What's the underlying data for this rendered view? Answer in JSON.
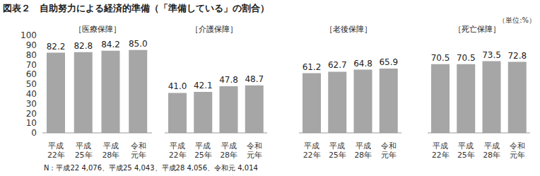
{
  "title": "図表２　自助努力による経済的準備（「準備している」の割合）",
  "unit": "（単位:%）",
  "note": "N：平成22 4,076、平成25 4,043、平成28 4,056、令和元 4,014",
  "chart_data": [
    {
      "type": "bar",
      "title": "［医療保障］",
      "categories": [
        "平成\n22年",
        "平成\n25年",
        "平成\n28年",
        "令和\n元年"
      ],
      "values": [
        82.2,
        82.8,
        84.2,
        85.0
      ],
      "value_labels": [
        "82.2",
        "82.8",
        "84.2",
        "85.0"
      ],
      "color": "#a6a6a6",
      "ylim": [
        0,
        100
      ],
      "yticks": [
        0,
        10,
        20,
        30,
        40,
        50,
        60,
        70,
        80,
        90,
        100
      ],
      "data_labels": true
    },
    {
      "type": "bar",
      "title": "［介護保障］",
      "categories": [
        "平成\n22年",
        "平成\n25年",
        "平成\n28年",
        "令和\n元年"
      ],
      "values": [
        41.0,
        42.1,
        47.8,
        48.7
      ],
      "value_labels": [
        "41.0",
        "42.1",
        "47.8",
        "48.7"
      ],
      "color": "#a6a6a6",
      "ylim": [
        0,
        100
      ],
      "yticks": [
        0,
        10,
        20,
        30,
        40,
        50,
        60,
        70,
        80,
        90,
        100
      ],
      "data_labels": true,
      "tick_labels": "x"
    },
    {
      "type": "bar",
      "title": "［老後保障］",
      "categories": [
        "平成\n22年",
        "平成\n25年",
        "平成\n28年",
        "令和\n元年"
      ],
      "values": [
        61.2,
        62.7,
        64.8,
        65.9
      ],
      "value_labels": [
        "61.2",
        "62.7",
        "64.8",
        "65.9"
      ],
      "color": "#a6a6a6",
      "ylim": [
        0,
        100
      ],
      "yticks": [
        0,
        10,
        20,
        30,
        40,
        50,
        60,
        70,
        80,
        90,
        100
      ],
      "data_labels": true,
      "tick_labels": "x"
    },
    {
      "type": "bar",
      "title": "［死亡保障］",
      "categories": [
        "平成\n22年",
        "平成\n25年",
        "平成\n28年",
        "令和\n元年"
      ],
      "values": [
        70.5,
        70.5,
        73.5,
        72.8
      ],
      "value_labels": [
        "70.5",
        "70.5",
        "73.5",
        "72.8"
      ],
      "color": "#a6a6a6",
      "ylim": [
        0,
        100
      ],
      "yticks": [
        0,
        10,
        20,
        30,
        40,
        50,
        60,
        70,
        80,
        90,
        100
      ],
      "data_labels": true,
      "tick_labels": "x"
    }
  ]
}
